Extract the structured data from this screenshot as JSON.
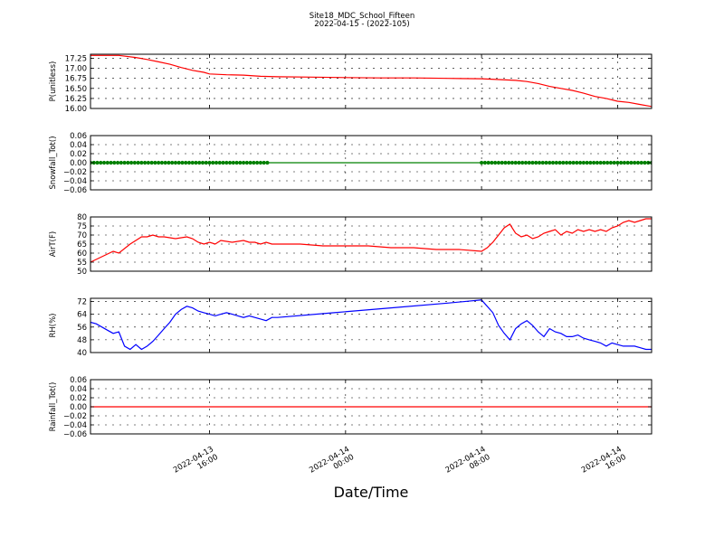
{
  "title": "Site18_MDC_School_Fifteen",
  "subtitle": "2022-04-15 - (2022-105)",
  "xlabel": "Date/Time",
  "x_ticks": [
    {
      "pos": 18.0,
      "line1": "2022-04-13",
      "line2": "16:00"
    },
    {
      "pos": 42.0,
      "line1": "2022-04-14",
      "line2": "00:00"
    },
    {
      "pos": 66.0,
      "line1": "2022-04-14",
      "line2": "08:00"
    },
    {
      "pos": 90.0,
      "line1": "2022-04-14",
      "line2": "16:00"
    }
  ],
  "chart_data": [
    {
      "type": "line",
      "ylabel": "P(unitless)",
      "ylim": [
        16.0,
        17.35
      ],
      "yticks": [
        "16.00",
        "16.25",
        "16.50",
        "16.75",
        "17.00",
        "17.25"
      ],
      "ytick_values": [
        16.0,
        16.25,
        16.5,
        16.75,
        17.0,
        17.25
      ],
      "color": "#ff0000",
      "series": [
        {
          "x": [
            -3,
            2,
            5,
            7,
            9,
            11,
            13,
            15,
            17,
            18,
            21,
            24,
            27,
            30,
            36,
            42,
            48,
            54,
            60,
            66,
            69,
            72,
            74,
            76,
            78,
            80,
            82,
            84,
            86,
            88,
            90,
            92,
            94,
            96
          ],
          "y": [
            17.32,
            17.32,
            17.27,
            17.22,
            17.16,
            17.1,
            17.02,
            16.95,
            16.9,
            16.86,
            16.84,
            16.83,
            16.8,
            16.79,
            16.78,
            16.77,
            16.76,
            16.76,
            16.75,
            16.74,
            16.72,
            16.7,
            16.67,
            16.62,
            16.55,
            16.5,
            16.45,
            16.38,
            16.3,
            16.25,
            16.18,
            16.15,
            16.1,
            16.05
          ]
        }
      ]
    },
    {
      "type": "line",
      "ylabel": "Snowfall_Tot()",
      "ylim": [
        -0.06,
        0.06
      ],
      "yticks": [
        "−0.06",
        "−0.04",
        "−0.02",
        "0.00",
        "0.02",
        "0.04",
        "0.06"
      ],
      "ytick_values": [
        -0.06,
        -0.04,
        -0.02,
        0.0,
        0.02,
        0.04,
        0.06
      ],
      "color": "#008000",
      "series": [
        {
          "x": [
            -3,
            96
          ],
          "y": [
            0,
            0
          ]
        }
      ],
      "markers": {
        "ranges": [
          [
            -3,
            28.5
          ],
          [
            66,
            96
          ]
        ],
        "step": 0.6,
        "y": 0
      }
    },
    {
      "type": "line",
      "ylabel": "AirT(F)",
      "ylim": [
        50,
        80
      ],
      "yticks": [
        "50",
        "55",
        "60",
        "65",
        "70",
        "75",
        "80"
      ],
      "ytick_values": [
        50,
        55,
        60,
        65,
        70,
        75,
        80
      ],
      "color": "#ff0000",
      "series": [
        {
          "x": [
            -3,
            -1,
            1,
            2,
            4,
            5,
            6,
            7,
            8,
            9,
            10,
            12,
            14,
            15,
            16,
            17,
            18,
            19,
            20,
            22,
            24,
            25,
            26,
            27,
            28,
            29,
            30,
            34,
            38,
            42,
            46,
            50,
            54,
            58,
            62,
            66,
            67,
            68,
            69,
            70,
            71,
            72,
            73,
            74,
            75,
            76,
            77,
            78,
            79,
            80,
            81,
            82,
            83,
            84,
            85,
            86,
            87,
            88,
            89,
            90,
            91,
            92,
            93,
            94,
            95,
            96
          ],
          "y": [
            55,
            58,
            61,
            60,
            65,
            67,
            69,
            69,
            70,
            69,
            69,
            68,
            69,
            68,
            66,
            65,
            66,
            65,
            67,
            66,
            67,
            66,
            66,
            65,
            66,
            65,
            65,
            65,
            64,
            64,
            64,
            63,
            63,
            62,
            62,
            61,
            63,
            66,
            70,
            74,
            76,
            71,
            69,
            70,
            68,
            69,
            71,
            72,
            73,
            70,
            72,
            71,
            73,
            72,
            73,
            72,
            73,
            72,
            74,
            75,
            77,
            78,
            77,
            78,
            79,
            79
          ]
        }
      ]
    },
    {
      "type": "line",
      "ylabel": "RH(%)",
      "ylim": [
        40,
        74
      ],
      "yticks": [
        "40",
        "48",
        "56",
        "64",
        "72"
      ],
      "ytick_values": [
        40,
        48,
        56,
        64,
        72
      ],
      "color": "#0000ff",
      "series": [
        {
          "x": [
            -3,
            -2,
            0,
            1,
            2,
            3,
            4,
            5,
            6,
            7,
            8,
            9,
            10,
            11,
            12,
            13,
            14,
            15,
            16,
            17,
            18,
            19,
            20,
            21,
            22,
            23,
            24,
            25,
            26,
            27,
            28,
            29,
            30,
            40,
            50,
            60,
            66,
            68,
            69,
            70,
            71,
            72,
            73,
            74,
            75,
            76,
            77,
            78,
            79,
            80,
            81,
            82,
            83,
            84,
            85,
            86,
            87,
            88,
            89,
            90,
            91,
            92,
            93,
            94,
            95,
            96
          ],
          "y": [
            59,
            58,
            54,
            52,
            53,
            44,
            42,
            45,
            42,
            44,
            47,
            51,
            55,
            59,
            64,
            67,
            69,
            68,
            66,
            65,
            64,
            63,
            64,
            65,
            64,
            63,
            62,
            63,
            62,
            61,
            60,
            62,
            62,
            65,
            68,
            71,
            73,
            65,
            57,
            52,
            48,
            55,
            58,
            60,
            57,
            53,
            50,
            55,
            53,
            52,
            50,
            50,
            51,
            49,
            48,
            47,
            46,
            44,
            46,
            45,
            44,
            44,
            44,
            43,
            42,
            42
          ]
        }
      ]
    },
    {
      "type": "line",
      "ylabel": "Rainfall_Tot()",
      "ylim": [
        -0.06,
        0.06
      ],
      "yticks": [
        "−0.06",
        "−0.04",
        "−0.02",
        "0.00",
        "0.02",
        "0.04",
        "0.06"
      ],
      "ytick_values": [
        -0.06,
        -0.04,
        -0.02,
        0.0,
        0.02,
        0.04,
        0.06
      ],
      "color": "#ff0000",
      "series": [
        {
          "x": [
            -3,
            96
          ],
          "y": [
            0,
            0
          ]
        }
      ]
    }
  ]
}
